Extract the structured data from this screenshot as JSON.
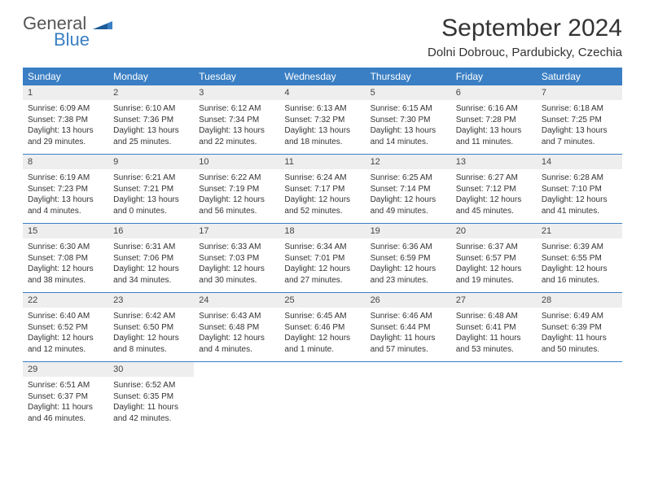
{
  "brand": {
    "general": "General",
    "blue": "Blue"
  },
  "title": {
    "month": "September 2024",
    "location": "Dolni Dobrouc, Pardubicky, Czechia"
  },
  "styling": {
    "accent": "#3a7fc4",
    "daynum_bg": "#eeeeee",
    "text_color": "#333333",
    "page_bg": "#ffffff",
    "title_fontsize": 30,
    "location_fontsize": 15,
    "weekday_fontsize": 12,
    "daynum_fontsize": 11,
    "body_fontsize": 10
  },
  "weekdays": [
    "Sunday",
    "Monday",
    "Tuesday",
    "Wednesday",
    "Thursday",
    "Friday",
    "Saturday"
  ],
  "weeks": [
    [
      {
        "n": "1",
        "sunrise": "Sunrise: 6:09 AM",
        "sunset": "Sunset: 7:38 PM",
        "daylight": "Daylight: 13 hours and 29 minutes."
      },
      {
        "n": "2",
        "sunrise": "Sunrise: 6:10 AM",
        "sunset": "Sunset: 7:36 PM",
        "daylight": "Daylight: 13 hours and 25 minutes."
      },
      {
        "n": "3",
        "sunrise": "Sunrise: 6:12 AM",
        "sunset": "Sunset: 7:34 PM",
        "daylight": "Daylight: 13 hours and 22 minutes."
      },
      {
        "n": "4",
        "sunrise": "Sunrise: 6:13 AM",
        "sunset": "Sunset: 7:32 PM",
        "daylight": "Daylight: 13 hours and 18 minutes."
      },
      {
        "n": "5",
        "sunrise": "Sunrise: 6:15 AM",
        "sunset": "Sunset: 7:30 PM",
        "daylight": "Daylight: 13 hours and 14 minutes."
      },
      {
        "n": "6",
        "sunrise": "Sunrise: 6:16 AM",
        "sunset": "Sunset: 7:28 PM",
        "daylight": "Daylight: 13 hours and 11 minutes."
      },
      {
        "n": "7",
        "sunrise": "Sunrise: 6:18 AM",
        "sunset": "Sunset: 7:25 PM",
        "daylight": "Daylight: 13 hours and 7 minutes."
      }
    ],
    [
      {
        "n": "8",
        "sunrise": "Sunrise: 6:19 AM",
        "sunset": "Sunset: 7:23 PM",
        "daylight": "Daylight: 13 hours and 4 minutes."
      },
      {
        "n": "9",
        "sunrise": "Sunrise: 6:21 AM",
        "sunset": "Sunset: 7:21 PM",
        "daylight": "Daylight: 13 hours and 0 minutes."
      },
      {
        "n": "10",
        "sunrise": "Sunrise: 6:22 AM",
        "sunset": "Sunset: 7:19 PM",
        "daylight": "Daylight: 12 hours and 56 minutes."
      },
      {
        "n": "11",
        "sunrise": "Sunrise: 6:24 AM",
        "sunset": "Sunset: 7:17 PM",
        "daylight": "Daylight: 12 hours and 52 minutes."
      },
      {
        "n": "12",
        "sunrise": "Sunrise: 6:25 AM",
        "sunset": "Sunset: 7:14 PM",
        "daylight": "Daylight: 12 hours and 49 minutes."
      },
      {
        "n": "13",
        "sunrise": "Sunrise: 6:27 AM",
        "sunset": "Sunset: 7:12 PM",
        "daylight": "Daylight: 12 hours and 45 minutes."
      },
      {
        "n": "14",
        "sunrise": "Sunrise: 6:28 AM",
        "sunset": "Sunset: 7:10 PM",
        "daylight": "Daylight: 12 hours and 41 minutes."
      }
    ],
    [
      {
        "n": "15",
        "sunrise": "Sunrise: 6:30 AM",
        "sunset": "Sunset: 7:08 PM",
        "daylight": "Daylight: 12 hours and 38 minutes."
      },
      {
        "n": "16",
        "sunrise": "Sunrise: 6:31 AM",
        "sunset": "Sunset: 7:06 PM",
        "daylight": "Daylight: 12 hours and 34 minutes."
      },
      {
        "n": "17",
        "sunrise": "Sunrise: 6:33 AM",
        "sunset": "Sunset: 7:03 PM",
        "daylight": "Daylight: 12 hours and 30 minutes."
      },
      {
        "n": "18",
        "sunrise": "Sunrise: 6:34 AM",
        "sunset": "Sunset: 7:01 PM",
        "daylight": "Daylight: 12 hours and 27 minutes."
      },
      {
        "n": "19",
        "sunrise": "Sunrise: 6:36 AM",
        "sunset": "Sunset: 6:59 PM",
        "daylight": "Daylight: 12 hours and 23 minutes."
      },
      {
        "n": "20",
        "sunrise": "Sunrise: 6:37 AM",
        "sunset": "Sunset: 6:57 PM",
        "daylight": "Daylight: 12 hours and 19 minutes."
      },
      {
        "n": "21",
        "sunrise": "Sunrise: 6:39 AM",
        "sunset": "Sunset: 6:55 PM",
        "daylight": "Daylight: 12 hours and 16 minutes."
      }
    ],
    [
      {
        "n": "22",
        "sunrise": "Sunrise: 6:40 AM",
        "sunset": "Sunset: 6:52 PM",
        "daylight": "Daylight: 12 hours and 12 minutes."
      },
      {
        "n": "23",
        "sunrise": "Sunrise: 6:42 AM",
        "sunset": "Sunset: 6:50 PM",
        "daylight": "Daylight: 12 hours and 8 minutes."
      },
      {
        "n": "24",
        "sunrise": "Sunrise: 6:43 AM",
        "sunset": "Sunset: 6:48 PM",
        "daylight": "Daylight: 12 hours and 4 minutes."
      },
      {
        "n": "25",
        "sunrise": "Sunrise: 6:45 AM",
        "sunset": "Sunset: 6:46 PM",
        "daylight": "Daylight: 12 hours and 1 minute."
      },
      {
        "n": "26",
        "sunrise": "Sunrise: 6:46 AM",
        "sunset": "Sunset: 6:44 PM",
        "daylight": "Daylight: 11 hours and 57 minutes."
      },
      {
        "n": "27",
        "sunrise": "Sunrise: 6:48 AM",
        "sunset": "Sunset: 6:41 PM",
        "daylight": "Daylight: 11 hours and 53 minutes."
      },
      {
        "n": "28",
        "sunrise": "Sunrise: 6:49 AM",
        "sunset": "Sunset: 6:39 PM",
        "daylight": "Daylight: 11 hours and 50 minutes."
      }
    ],
    [
      {
        "n": "29",
        "sunrise": "Sunrise: 6:51 AM",
        "sunset": "Sunset: 6:37 PM",
        "daylight": "Daylight: 11 hours and 46 minutes."
      },
      {
        "n": "30",
        "sunrise": "Sunrise: 6:52 AM",
        "sunset": "Sunset: 6:35 PM",
        "daylight": "Daylight: 11 hours and 42 minutes."
      },
      null,
      null,
      null,
      null,
      null
    ]
  ]
}
